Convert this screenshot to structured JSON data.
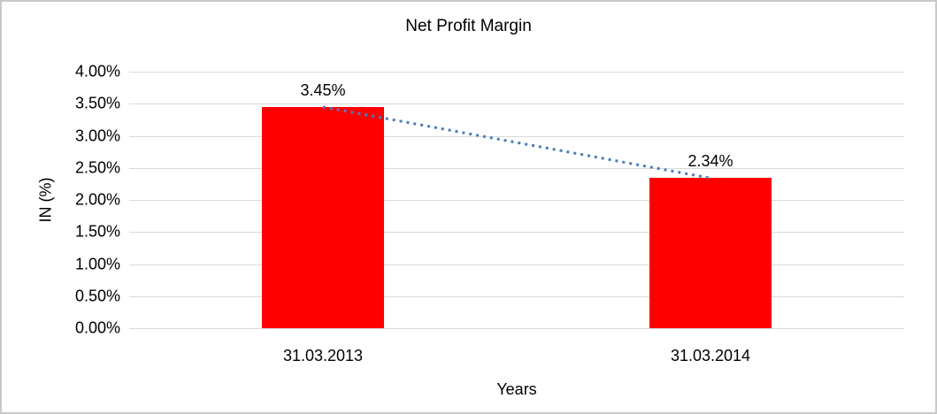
{
  "chart_data": {
    "type": "bar",
    "title": "Net Profit Margin",
    "categories": [
      "31.03.2013",
      "31.03.2014"
    ],
    "values": [
      3.45,
      2.34
    ],
    "data_labels": [
      "3.45%",
      "2.34%"
    ],
    "xlabel": "Years",
    "ylabel": "IN (%)",
    "ylim": [
      0,
      4
    ],
    "ytick_labels": [
      "4.00%",
      "3.50%",
      "3.00%",
      "2.50%",
      "2.00%",
      "1.50%",
      "1.00%",
      "0.50%",
      "0.00%"
    ],
    "grid": true,
    "legend": "none",
    "bar_color": "#FF0000",
    "gridline_color": "#D9D9D9",
    "trendline": {
      "type": "linear",
      "style": "dotted",
      "color": "#4A7EBB",
      "from_value": 3.45,
      "to_value": 2.34
    }
  }
}
